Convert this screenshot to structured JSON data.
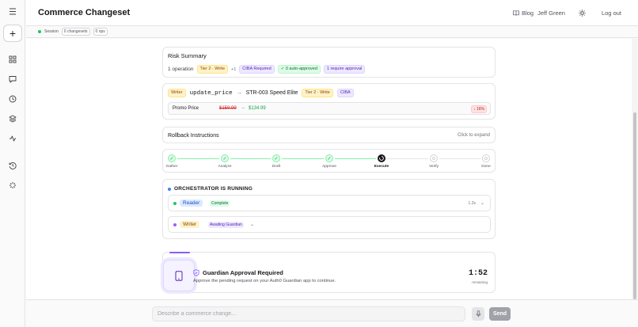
{
  "header": {
    "app_title": "Commerce Changeset",
    "blog_label": "Blog",
    "user_name": "Jeff Green",
    "logout_label": "Log out"
  },
  "session_bar": {
    "session_label": "Session",
    "changesets": "0 changesets",
    "ops": "0 ops"
  },
  "sidebar": {
    "icons": [
      "menu-icon",
      "plus-icon",
      "grid-icon",
      "chat-icon",
      "clock-icon",
      "layers-icon",
      "activity-icon",
      "history-icon",
      "integrations-icon"
    ]
  },
  "risk_summary": {
    "title": "Risk Summary",
    "operations": "1 operation",
    "tier_badge": "Tier 2 · Write",
    "extra_count": "+1",
    "ciba_badge": "CIBA Required",
    "auto_approved": "✓ 0 auto-approved",
    "require_approval": "1 require approval"
  },
  "operation": {
    "agent": "Writer",
    "function": "update_price",
    "arrow": "→",
    "target": "STR-003 Speed Elite",
    "tier_badge": "Tier 2 · Write",
    "ciba_badge": "CIBA",
    "field_label": "Promo Price",
    "old_value": "$159.99",
    "new_value": "$134.99",
    "change_pct": "↓ 16%"
  },
  "rollback": {
    "title": "Rollback Instructions",
    "hint": "Click to expand"
  },
  "pipeline": {
    "steps": [
      {
        "label": "Gather",
        "state": "done"
      },
      {
        "label": "Analyze",
        "state": "done"
      },
      {
        "label": "Draft",
        "state": "done"
      },
      {
        "label": "Approve",
        "state": "done"
      },
      {
        "label": "Execute",
        "state": "active"
      },
      {
        "label": "Verify",
        "state": "pending"
      },
      {
        "label": "Done",
        "state": "pending"
      }
    ]
  },
  "orchestrator": {
    "title": "ORCHESTRATOR IS RUNNING",
    "agents": [
      {
        "name": "Reader",
        "status": "Complete",
        "time": "1.2s"
      },
      {
        "name": "Writer",
        "status": "Awaiting Guardian",
        "time": ""
      }
    ]
  },
  "guardian": {
    "title": "Guardian Approval Required",
    "subtitle": "Approve the pending request on your Auth0 Guardian app to continue.",
    "timer": "1:52",
    "timer_label": "remaining"
  },
  "composer": {
    "placeholder": "Describe a commerce change...",
    "send_label": "Send"
  },
  "colors": {
    "accent_purple": "#8b5cf6",
    "success_green": "#16a34a",
    "danger_red": "#dc2626",
    "info_blue": "#3b82f6"
  }
}
